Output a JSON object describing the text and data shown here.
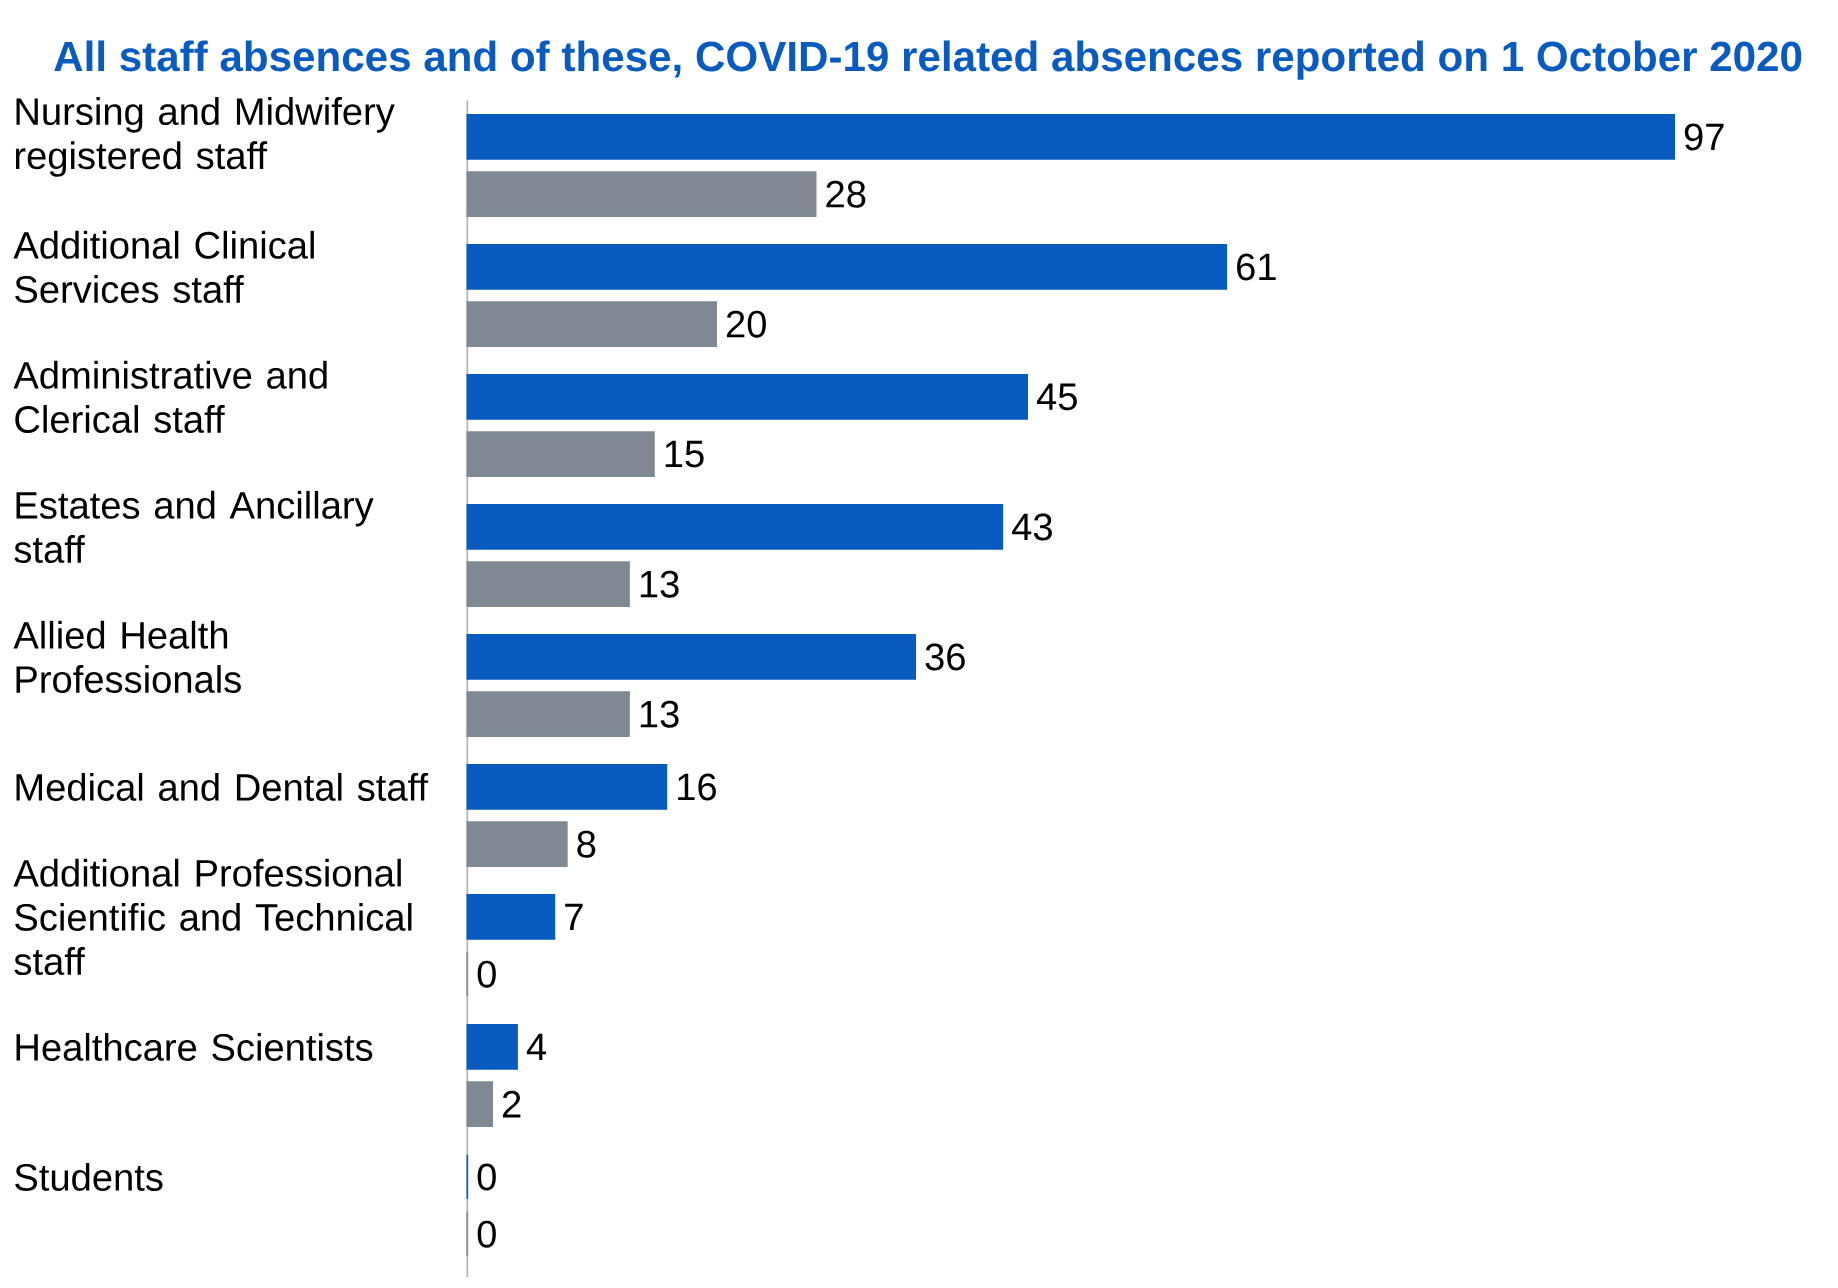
{
  "chart_data": {
    "type": "bar",
    "orientation": "horizontal",
    "title": "All staff absences and of these, COVID-19 related absences reported on 1 October 2020",
    "categories": [
      "Nursing and Midwifery registered staff",
      "Additional Clinical Services staff",
      "Administrative and Clerical staff",
      "Estates and Ancillary staff",
      "Allied Health Professionals",
      "Medical and Dental staff",
      "Additional Professional Scientific and Technical staff",
      "Healthcare Scientists",
      "Students"
    ],
    "series": [
      {
        "color": "#0a5bbf",
        "values": [
          97,
          61,
          45,
          43,
          36,
          16,
          7,
          4,
          0
        ]
      },
      {
        "color": "#7f8893",
        "values": [
          28,
          20,
          15,
          13,
          13,
          8,
          0,
          2,
          0
        ]
      }
    ],
    "data_labels": true
  }
}
